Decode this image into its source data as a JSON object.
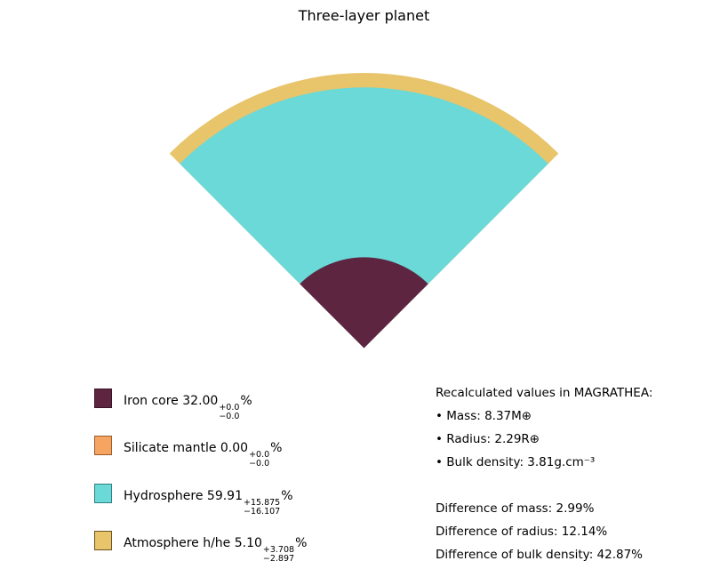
{
  "title": "Three-layer planet",
  "colors": {
    "iron_core": "#5e2541",
    "silicate_mantle": "#f5a462",
    "hydrosphere": "#6ad9d8",
    "atmosphere": "#e8c46a"
  },
  "chart_data": {
    "type": "pie",
    "title": "Three-layer planet",
    "layers": [
      {
        "name": "Iron core",
        "value": "32.00",
        "plus": "+0.0",
        "minus": "−0.0",
        "unit": "%",
        "color": "#5e2541",
        "edge": "#3a1327",
        "radius_fraction": 0.32
      },
      {
        "name": "Silicate mantle",
        "value": "0.00",
        "plus": "+0.0",
        "minus": "−0.0",
        "unit": "%",
        "color": "#f5a462",
        "edge": "#9a5a2a",
        "radius_fraction": 0.0
      },
      {
        "name": "Hydrosphere",
        "value": "59.91",
        "plus": "+15.875",
        "minus": "−16.107",
        "unit": "%",
        "color": "#6ad9d8",
        "edge": "#2f7f7e",
        "radius_fraction": 0.5991
      },
      {
        "name": "Atmosphere h/he",
        "value": "5.10",
        "plus": "+3.708",
        "minus": "−2.897",
        "unit": "%",
        "color": "#e8c46a",
        "edge": "#6b5220",
        "radius_fraction": 0.051
      }
    ]
  },
  "info": {
    "header": "Recalculated values in MAGRATHEA:",
    "mass": "• Mass: 8.37M⊕",
    "radius": "• Radius: 2.29R⊕",
    "density": "• Bulk density: 3.81g.cm⁻³",
    "diff_mass": "Difference of mass: 2.99%",
    "diff_radius": "Difference of radius: 12.14%",
    "diff_density": "Difference of bulk density: 42.87%"
  }
}
